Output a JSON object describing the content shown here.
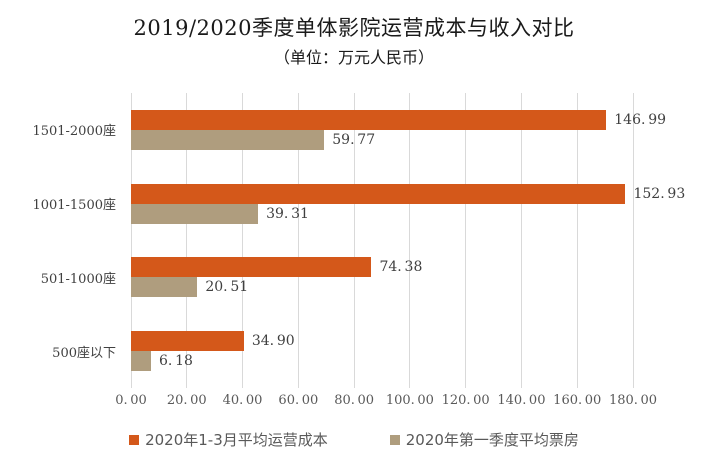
{
  "title": "2019/2020季度单体影院运营成本与收入对比",
  "subtitle": "（单位：万元人民币）",
  "colors": {
    "cost_bar": "#d4581a",
    "boxoffice_bar": "#af9d7e",
    "gridline": "#d9d9d9",
    "value_label": "#404040",
    "axis_label": "#595959",
    "background": "#ffffff"
  },
  "chart_data": {
    "type": "bar",
    "orientation": "horizontal",
    "title": "2019/2020季度单体影院运营成本与收入对比",
    "subtitle": "（单位：万元人民币）",
    "unit": "万元人民币",
    "categories": [
      "1501-2000座",
      "1001-1500座",
      "501-1000座",
      "500座以下"
    ],
    "series": [
      {
        "name": "2020年1-3月平均运营成本",
        "color": "#d4581a",
        "values": [
          146.99,
          152.93,
          74.38,
          34.9
        ],
        "display": [
          "146. 99",
          "152. 93",
          "74. 38",
          "34. 90"
        ]
      },
      {
        "name": "2020年第一季度平均票房",
        "color": "#af9d7e",
        "values": [
          59.77,
          39.31,
          20.51,
          6.18
        ],
        "display": [
          "59. 77",
          "39. 31",
          "20. 51",
          "6. 18"
        ]
      }
    ],
    "xlim": [
      0,
      180
    ],
    "xticks": [
      0,
      20,
      40,
      60,
      80,
      100,
      120,
      140,
      160,
      180
    ],
    "xtick_labels": [
      "0. 00",
      "20. 00",
      "40. 00",
      "60. 00",
      "80. 00",
      "100. 00",
      "120. 00",
      "140. 00",
      "160. 00",
      "180. 00"
    ],
    "grid": "vertical",
    "legend_position": "bottom"
  },
  "legend": {
    "items": [
      {
        "label": "2020年1-3月平均运营成本",
        "color": "#d4581a"
      },
      {
        "label": "2020年第一季度平均票房",
        "color": "#af9d7e"
      }
    ]
  }
}
